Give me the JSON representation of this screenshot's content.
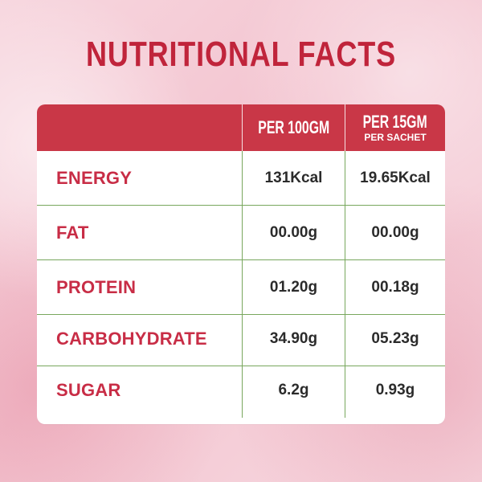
{
  "title": "NUTRITIONAL FACTS",
  "header": {
    "col1_main": "PER 100GM",
    "col2_main": "PER 15GM",
    "col2_sub": "PER SACHET"
  },
  "rows": [
    {
      "label": "ENERGY",
      "per100": "131Kcal",
      "per15": "19.65Kcal"
    },
    {
      "label": "FAT",
      "per100": "00.00g",
      "per15": "00.00g"
    },
    {
      "label": "PROTEIN",
      "per100": "01.20g",
      "per15": "00.18g"
    },
    {
      "label": "CARBOHYDRATE",
      "per100": "34.90g",
      "per15": "05.23g"
    },
    {
      "label": "SUGAR",
      "per100": "6.2g",
      "per15": "0.93g"
    }
  ],
  "colors": {
    "title": "#c0243b",
    "header": "#c93747",
    "label": "#c82d46",
    "divider": "#78a75d",
    "background": "#f3c3cf",
    "card": "#ffffff"
  }
}
